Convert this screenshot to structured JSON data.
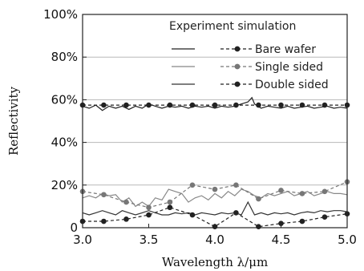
{
  "chart_data": {
    "type": "line",
    "xlabel": "Wavelength λ/μm",
    "ylabel": "Reflectivity",
    "xlim": [
      3.0,
      5.0
    ],
    "ylim": [
      0,
      100
    ],
    "x_ticks": [
      "3.0",
      "3.5",
      "4.0",
      "4.5",
      "5.0"
    ],
    "y_ticks": [
      "0",
      "20%",
      "40%",
      "60%",
      "80%",
      "100%"
    ],
    "grid": "horizontal lines at 20% intervals",
    "legend": {
      "placement": "top-right",
      "column_headers": [
        "Experiment",
        "simulation"
      ],
      "entries": [
        "Bare wafer",
        "Single sided",
        "Double sided"
      ]
    },
    "series": [
      {
        "name": "Bare wafer",
        "kind": "experiment",
        "color": "#222222",
        "x": [
          3.0,
          3.05,
          3.1,
          3.15,
          3.2,
          3.25,
          3.3,
          3.35,
          3.4,
          3.45,
          3.5,
          3.55,
          3.6,
          3.65,
          3.7,
          3.75,
          3.8,
          3.85,
          3.9,
          3.95,
          4.0,
          4.05,
          4.1,
          4.15,
          4.2,
          4.25,
          4.28,
          4.3,
          4.35,
          4.4,
          4.45,
          4.5,
          4.55,
          4.6,
          4.65,
          4.7,
          4.75,
          4.8,
          4.85,
          4.9,
          4.95,
          5.0
        ],
        "y": [
          57,
          56,
          57.5,
          55,
          57,
          56,
          57,
          55.5,
          57,
          56,
          58,
          57,
          56,
          57,
          56.5,
          57,
          56,
          57,
          56.5,
          57,
          56,
          57,
          56.5,
          57,
          58,
          59,
          61,
          58,
          56,
          57,
          56.5,
          56,
          57,
          56,
          56.5,
          57,
          56,
          56.5,
          57,
          56,
          56.5,
          56
        ]
      },
      {
        "name": "Single sided",
        "kind": "experiment",
        "color": "#888888",
        "x": [
          3.0,
          3.05,
          3.1,
          3.15,
          3.2,
          3.25,
          3.3,
          3.35,
          3.4,
          3.45,
          3.5,
          3.55,
          3.6,
          3.65,
          3.7,
          3.75,
          3.8,
          3.85,
          3.9,
          3.95,
          4.0,
          4.05,
          4.1,
          4.15,
          4.2,
          4.25,
          4.3,
          4.35,
          4.4,
          4.45,
          4.5,
          4.55,
          4.6,
          4.65,
          4.7,
          4.75,
          4.8,
          4.85,
          4.9,
          4.95,
          5.0
        ],
        "y": [
          14,
          15,
          14,
          16,
          15,
          15.5,
          12,
          14,
          10,
          12,
          10,
          14,
          13,
          18,
          17,
          16,
          12,
          14,
          15,
          13,
          16,
          14,
          17,
          15,
          18,
          17,
          15,
          14,
          16,
          15,
          16,
          17,
          15,
          16,
          17,
          15,
          16,
          17,
          16,
          16,
          15.5
        ]
      },
      {
        "name": "Double sided",
        "kind": "experiment",
        "color": "#333333",
        "x": [
          3.0,
          3.05,
          3.1,
          3.15,
          3.2,
          3.25,
          3.3,
          3.35,
          3.4,
          3.45,
          3.5,
          3.55,
          3.6,
          3.65,
          3.7,
          3.75,
          3.8,
          3.85,
          3.9,
          3.95,
          4.0,
          4.05,
          4.1,
          4.15,
          4.2,
          4.25,
          4.3,
          4.35,
          4.4,
          4.45,
          4.5,
          4.55,
          4.6,
          4.65,
          4.7,
          4.75,
          4.8,
          4.85,
          4.9,
          4.95,
          5.0
        ],
        "y": [
          7,
          6,
          7,
          8,
          7,
          6,
          8,
          7,
          6,
          7,
          8,
          7,
          6,
          6,
          7,
          6.5,
          7,
          6,
          7,
          6.5,
          6,
          7,
          6.5,
          7,
          6,
          12,
          6,
          7,
          6,
          7,
          6.5,
          7,
          6,
          7,
          7.5,
          7,
          8,
          7.5,
          8,
          8,
          7.5
        ]
      },
      {
        "name": "Bare wafer",
        "kind": "simulation",
        "color": "#222222",
        "x": [
          3.0,
          3.16,
          3.33,
          3.5,
          3.66,
          3.83,
          4.0,
          4.16,
          4.33,
          4.5,
          4.66,
          4.83,
          5.0
        ],
        "y": [
          57.5,
          57.5,
          57.5,
          57.5,
          57.5,
          57.5,
          57.5,
          57.5,
          57.5,
          57.5,
          57.5,
          57.5,
          57.5
        ]
      },
      {
        "name": "Single sided",
        "kind": "simulation",
        "color": "#777777",
        "x": [
          3.0,
          3.16,
          3.33,
          3.5,
          3.66,
          3.83,
          4.0,
          4.16,
          4.33,
          4.5,
          4.66,
          4.83,
          5.0
        ],
        "y": [
          17,
          15.5,
          12,
          9.5,
          12,
          20,
          18,
          20,
          13.5,
          17.5,
          16,
          17,
          21.5
        ]
      },
      {
        "name": "Double sided",
        "kind": "simulation",
        "color": "#222222",
        "x": [
          3.0,
          3.16,
          3.33,
          3.5,
          3.66,
          3.83,
          4.0,
          4.16,
          4.33,
          4.5,
          4.66,
          4.83,
          5.0
        ],
        "y": [
          3,
          3,
          4,
          6,
          9.5,
          6,
          0.5,
          7,
          0.5,
          2,
          3,
          5,
          6.5
        ]
      }
    ]
  }
}
